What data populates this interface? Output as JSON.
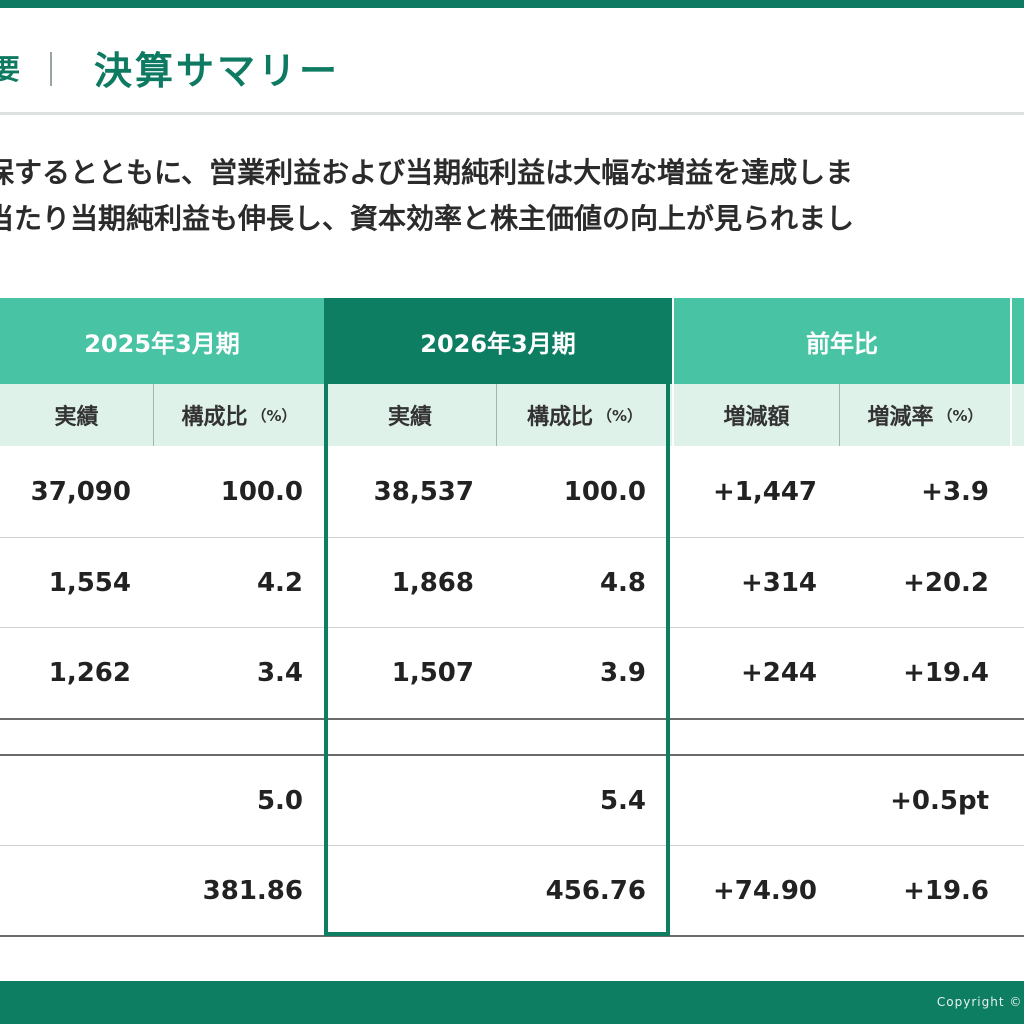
{
  "header": {
    "crumb": "要",
    "title": "決算サマリー"
  },
  "intro": {
    "line1": "保するとともに、営業利益および当期純利益は大幅な増益を達成しま",
    "line2": "当たり当期純利益も伸長し、資本効率と株主価値の向上が見られまし"
  },
  "table": {
    "groups": {
      "fy2025": "2025年3月期",
      "fy2026": "2026年3月期",
      "yoy": "前年比"
    },
    "subheaders": {
      "actual": "実績",
      "ratio": "構成比",
      "ratio_unit": "（%）",
      "change_amount": "増減額",
      "change_rate": "増減率",
      "change_rate_unit": "（%）"
    },
    "rows": [
      {
        "a25": "37,090",
        "r25": "100.0",
        "a26": "38,537",
        "r26": "100.0",
        "diff": "+1,447",
        "rate": "+3.9"
      },
      {
        "a25": "1,554",
        "r25": "4.2",
        "a26": "1,868",
        "r26": "4.8",
        "diff": "+314",
        "rate": "+20.2"
      },
      {
        "a25": "1,262",
        "r25": "3.4",
        "a26": "1,507",
        "r26": "3.9",
        "diff": "+244",
        "rate": "+19.4"
      },
      {
        "a25": "",
        "r25": "5.0",
        "a26": "",
        "r26": "5.4",
        "diff": "",
        "rate": "+0.5pt"
      },
      {
        "a25": "",
        "r25": "381.86",
        "a26": "",
        "r26": "456.76",
        "diff": "+74.90",
        "rate": "+19.6"
      }
    ]
  },
  "footer": {
    "copyright": "Copyright © ."
  },
  "colors": {
    "brand": "#0e7e63",
    "header_light": "#48c3a3",
    "subheader_bg": "#dff2ea"
  }
}
